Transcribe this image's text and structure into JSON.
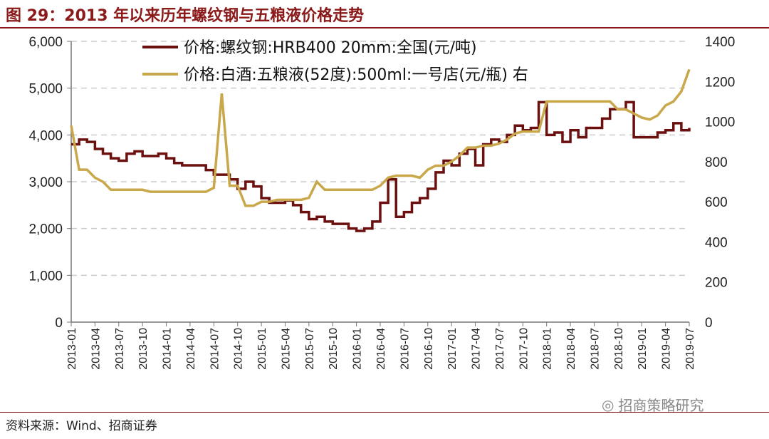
{
  "title": "图 29：2013 年以来历年螺纹钢与五粮液价格走势",
  "source": "资料来源：Wind、招商证券",
  "watermark": "招商策略研究",
  "colors": {
    "rebar": "#6B0F0F",
    "wuliangye": "#C8A84B",
    "title": "#8B1A1A",
    "grid": "#CCCCCC"
  },
  "chart_data": {
    "type": "line",
    "title": "2013 年以来历年螺纹钢与五粮液价格走势",
    "x_start": "2013-01",
    "x_ticks": [
      "2013-01",
      "2013-04",
      "2013-07",
      "2013-10",
      "2014-01",
      "2014-04",
      "2014-07",
      "2014-10",
      "2015-01",
      "2015-04",
      "2015-07",
      "2015-10",
      "2016-01",
      "2016-04",
      "2016-07",
      "2016-10",
      "2017-01",
      "2017-04",
      "2017-07",
      "2017-10",
      "2018-01",
      "2018-04",
      "2018-07",
      "2018-10",
      "2019-01",
      "2019-04",
      "2019-07"
    ],
    "y_left": {
      "lim": [
        0,
        6000
      ],
      "ticks": [
        "0",
        "1,000",
        "2,000",
        "3,000",
        "4,000",
        "5,000",
        "6,000"
      ]
    },
    "y_right": {
      "lim": [
        0,
        1400
      ],
      "ticks": [
        "0",
        "200",
        "400",
        "600",
        "800",
        "1000",
        "1200",
        "1400"
      ]
    },
    "grid": "horizontal dashed",
    "legend_position": "top",
    "series": [
      {
        "name": "价格:螺纹钢:HRB400 20mm:全国(元/吨)",
        "axis": "left",
        "values": [
          3800,
          3900,
          3850,
          3700,
          3600,
          3500,
          3450,
          3600,
          3650,
          3550,
          3550,
          3600,
          3500,
          3400,
          3350,
          3350,
          3350,
          3250,
          3150,
          3150,
          3050,
          2850,
          3000,
          2900,
          2650,
          2550,
          2550,
          2600,
          2500,
          2350,
          2200,
          2250,
          2150,
          2100,
          2100,
          2000,
          1950,
          2000,
          2150,
          2550,
          3050,
          2250,
          2350,
          2550,
          2650,
          2850,
          3200,
          3450,
          3350,
          3600,
          3700,
          3350,
          3800,
          3900,
          3850,
          4000,
          4200,
          4100,
          4150,
          4700,
          4000,
          4050,
          3850,
          4100,
          3950,
          4150,
          4150,
          4350,
          4550,
          4550,
          4700,
          3950,
          3950,
          3950,
          4050,
          4100,
          4250,
          4100,
          4150
        ]
      },
      {
        "name": "价格:白酒:五粮液(52度):500ml:一号店(元/瓶) 右",
        "axis": "right",
        "values": [
          980,
          760,
          760,
          720,
          700,
          660,
          660,
          660,
          660,
          660,
          650,
          650,
          650,
          650,
          650,
          650,
          650,
          650,
          670,
          1140,
          680,
          680,
          580,
          580,
          600,
          600,
          610,
          610,
          610,
          610,
          620,
          700,
          660,
          660,
          660,
          660,
          660,
          660,
          660,
          680,
          720,
          730,
          730,
          730,
          720,
          760,
          780,
          780,
          800,
          830,
          870,
          870,
          880,
          880,
          890,
          910,
          940,
          950,
          950,
          950,
          1100,
          1100,
          1100,
          1100,
          1100,
          1100,
          1100,
          1100,
          1100,
          1060,
          1060,
          1040,
          1020,
          1010,
          1030,
          1080,
          1100,
          1150,
          1260
        ]
      }
    ]
  }
}
